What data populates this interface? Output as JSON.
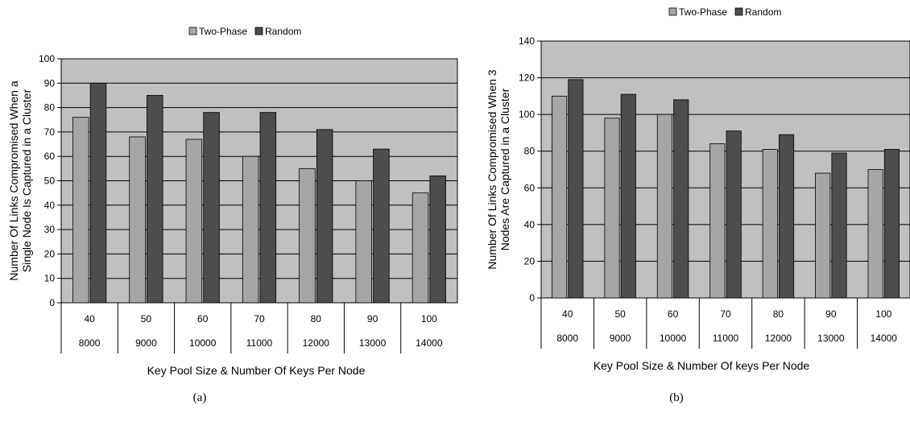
{
  "colors": {
    "plot_bg": "#c0c0c0",
    "two_phase": "#a6a6a6",
    "random": "#4d4d4d",
    "gridline": "#000000"
  },
  "chart_data": [
    {
      "type": "bar",
      "caption": "(a)",
      "legend": [
        "Two-Phase",
        "Random"
      ],
      "legend_position": "top",
      "xlabel": "Key Pool Size & Number Of Keys Per Node",
      "ylabel": [
        "Number Of Links Compromised When a",
        "Single Node Is Captured in a Cluster"
      ],
      "ylim": [
        0,
        100
      ],
      "yticks": [
        0,
        10,
        20,
        30,
        40,
        50,
        60,
        70,
        80,
        90,
        100
      ],
      "categories": [
        "40",
        "50",
        "60",
        "70",
        "80",
        "90",
        "100"
      ],
      "categories2": [
        "8000",
        "9000",
        "10000",
        "11000",
        "12000",
        "13000",
        "14000"
      ],
      "grid": true,
      "series": [
        {
          "name": "Two-Phase",
          "values": [
            76,
            68,
            67,
            60,
            55,
            50,
            45
          ]
        },
        {
          "name": "Random",
          "values": [
            90,
            85,
            78,
            78,
            71,
            63,
            52
          ]
        }
      ]
    },
    {
      "type": "bar",
      "caption": "(b)",
      "legend": [
        "Two-Phase",
        "Random"
      ],
      "legend_position": "top",
      "xlabel": "Key Pool Size & Number Of keys Per Node",
      "ylabel": [
        "Number Of Links Compromised When 3",
        "Nodes Are Captured in a Cluster"
      ],
      "ylim": [
        0,
        140
      ],
      "yticks": [
        0,
        20,
        40,
        60,
        80,
        100,
        120,
        140
      ],
      "categories": [
        "40",
        "50",
        "60",
        "70",
        "80",
        "90",
        "100"
      ],
      "categories2": [
        "8000",
        "9000",
        "10000",
        "11000",
        "12000",
        "13000",
        "14000"
      ],
      "grid": true,
      "series": [
        {
          "name": "Two-Phase",
          "values": [
            110,
            98,
            100,
            84,
            81,
            68,
            70
          ]
        },
        {
          "name": "Random",
          "values": [
            119,
            111,
            108,
            91,
            89,
            79,
            81
          ]
        }
      ]
    }
  ]
}
